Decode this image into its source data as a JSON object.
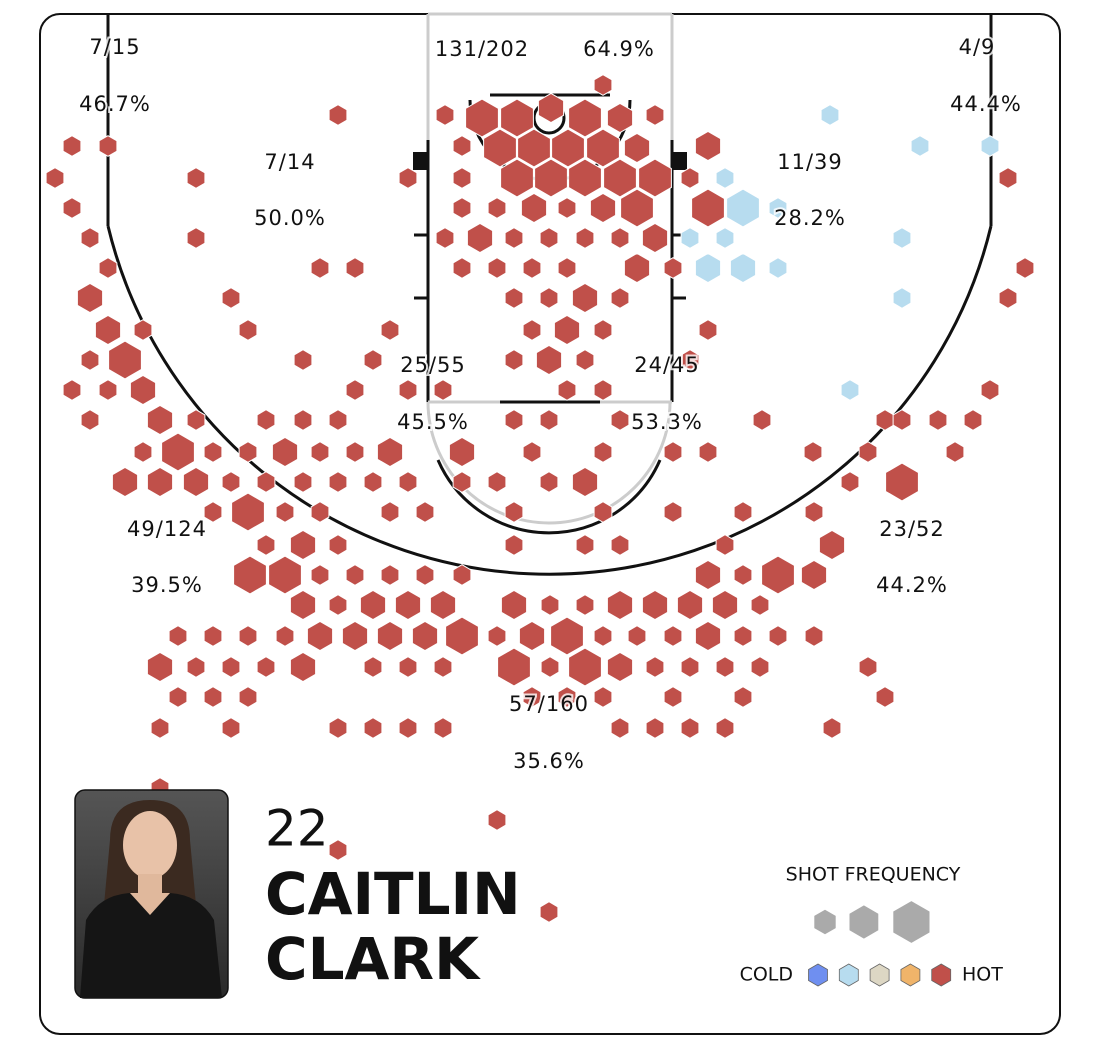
{
  "chart_data": {
    "type": "hexbin",
    "zones": [
      {
        "made": "7/15",
        "pct": "46.7%"
      },
      {
        "made": "7/14",
        "pct": "50.0%"
      },
      {
        "made": "131/202",
        "pct": "64.9%"
      },
      {
        "made": "4/9",
        "pct": "44.4%"
      },
      {
        "made": "11/39",
        "pct": "28.2%"
      },
      {
        "made": "25/55",
        "pct": "45.5%"
      },
      {
        "made": "24/45",
        "pct": "53.3%"
      },
      {
        "made": "49/124",
        "pct": "39.5%"
      },
      {
        "made": "23/52",
        "pct": "44.2%"
      },
      {
        "made": "57/160",
        "pct": "35.6%"
      }
    ],
    "player": {
      "number": "22",
      "name_lines": [
        "CAITLIN",
        "CLARK"
      ]
    },
    "legend": {
      "title": "SHOT FREQUENCY",
      "cold_label": "COLD",
      "hot_label": "HOT",
      "frequency_levels": [
        1,
        2,
        3
      ],
      "heat_levels": [
        1,
        2,
        3,
        4,
        5
      ],
      "heat_colors": [
        "#6f8ff0",
        "#b7dcef",
        "#ddd7c4",
        "#f0b46a",
        "#c0504a"
      ]
    },
    "hexes": [
      [
        -3.35,
        5.2,
        3,
        5
      ],
      [
        -1.6,
        5.2,
        3,
        5
      ],
      [
        1.8,
        5.2,
        3,
        5
      ],
      [
        3.55,
        5.2,
        2,
        5
      ],
      [
        -2.45,
        6.7,
        3,
        5
      ],
      [
        -0.75,
        6.7,
        3,
        5
      ],
      [
        0.95,
        6.7,
        3,
        5
      ],
      [
        2.7,
        6.7,
        3,
        5
      ],
      [
        4.4,
        6.7,
        2,
        5
      ],
      [
        -1.6,
        8.2,
        3,
        5
      ],
      [
        0.1,
        8.2,
        3,
        5
      ],
      [
        1.8,
        8.2,
        3,
        5
      ],
      [
        3.55,
        8.2,
        3,
        5
      ],
      [
        5.3,
        8.2,
        3,
        5
      ],
      [
        -0.75,
        9.7,
        2,
        5
      ],
      [
        2.7,
        9.7,
        2,
        5
      ],
      [
        4.4,
        9.7,
        3,
        5
      ],
      [
        7.95,
        9.7,
        3,
        5
      ],
      [
        7.95,
        6.6,
        2,
        5
      ],
      [
        2.7,
        3.55,
        1,
        5
      ],
      [
        0.1,
        4.7,
        2,
        5
      ],
      [
        9.7,
        9.7,
        3,
        2
      ],
      [
        7.95,
        12.7,
        2,
        2
      ],
      [
        9.7,
        12.7,
        2,
        2
      ],
      [
        11.45,
        12.7,
        1,
        2
      ],
      [
        8.8,
        11.2,
        1,
        2
      ],
      [
        7.05,
        11.2,
        1,
        2
      ],
      [
        17.65,
        11.2,
        1,
        2
      ],
      [
        17.65,
        14.2,
        1,
        2
      ],
      [
        18.55,
        6.6,
        1,
        2
      ],
      [
        15.05,
        18.8,
        1,
        2
      ],
      [
        8.8,
        8.2,
        1,
        2
      ],
      [
        14.05,
        5.05,
        1,
        2
      ],
      [
        11.45,
        9.7,
        1,
        2
      ],
      [
        22.05,
        6.6,
        1,
        2
      ],
      [
        -5.2,
        5.05,
        1,
        5
      ],
      [
        5.3,
        5.05,
        1,
        5
      ],
      [
        -10.55,
        5.05,
        1,
        5
      ],
      [
        -22.05,
        6.6,
        1,
        5
      ],
      [
        -23.85,
        6.6,
        1,
        5
      ],
      [
        -17.65,
        8.2,
        1,
        5
      ],
      [
        -7.05,
        8.2,
        1,
        5
      ],
      [
        -4.35,
        6.6,
        1,
        5
      ],
      [
        -24.7,
        8.2,
        1,
        5
      ],
      [
        -23.85,
        9.7,
        1,
        5
      ],
      [
        -22.95,
        11.2,
        1,
        5
      ],
      [
        -17.65,
        11.2,
        1,
        5
      ],
      [
        -22.05,
        12.7,
        1,
        5
      ],
      [
        -11.45,
        12.7,
        1,
        5
      ],
      [
        -9.7,
        12.7,
        1,
        5
      ],
      [
        -22.95,
        14.2,
        2,
        5
      ],
      [
        -15.9,
        14.2,
        1,
        5
      ],
      [
        -22.05,
        15.8,
        2,
        5
      ],
      [
        -20.3,
        15.8,
        1,
        5
      ],
      [
        -15.05,
        15.8,
        1,
        5
      ],
      [
        -7.95,
        15.8,
        1,
        5
      ],
      [
        -21.2,
        17.3,
        3,
        5
      ],
      [
        -22.95,
        17.3,
        1,
        5
      ],
      [
        -12.3,
        17.3,
        1,
        5
      ],
      [
        -23.85,
        18.8,
        1,
        5
      ],
      [
        -20.3,
        18.8,
        2,
        5
      ],
      [
        -9.7,
        18.8,
        1,
        5
      ],
      [
        -22.05,
        18.8,
        1,
        5
      ],
      [
        -19.45,
        20.3,
        2,
        5
      ],
      [
        -22.95,
        20.3,
        1,
        5
      ],
      [
        -17.65,
        20.3,
        1,
        5
      ],
      [
        -14.15,
        20.3,
        1,
        5
      ],
      [
        -12.3,
        20.3,
        1,
        5
      ],
      [
        -10.55,
        20.3,
        1,
        5
      ],
      [
        -18.55,
        21.9,
        3,
        5
      ],
      [
        -20.3,
        21.9,
        1,
        5
      ],
      [
        -16.8,
        21.9,
        1,
        5
      ],
      [
        -15.05,
        21.9,
        1,
        5
      ],
      [
        -13.2,
        21.9,
        2,
        5
      ],
      [
        -11.45,
        21.9,
        1,
        5
      ],
      [
        -9.7,
        21.9,
        1,
        5
      ],
      [
        -7.95,
        21.9,
        2,
        5
      ],
      [
        -21.2,
        23.4,
        2,
        5
      ],
      [
        -19.45,
        23.4,
        2,
        5
      ],
      [
        -17.65,
        23.4,
        2,
        5
      ],
      [
        -15.9,
        23.4,
        1,
        5
      ],
      [
        -14.15,
        23.4,
        1,
        5
      ],
      [
        -12.3,
        23.4,
        1,
        5
      ],
      [
        -10.55,
        23.4,
        1,
        5
      ],
      [
        -8.8,
        23.4,
        1,
        5
      ],
      [
        -7.05,
        23.4,
        1,
        5
      ],
      [
        -15.05,
        24.9,
        3,
        5
      ],
      [
        -16.8,
        24.9,
        1,
        5
      ],
      [
        -13.2,
        24.9,
        1,
        5
      ],
      [
        -11.45,
        24.9,
        1,
        5
      ],
      [
        -7.95,
        24.9,
        1,
        5
      ],
      [
        -6.2,
        24.9,
        1,
        5
      ],
      [
        -14.15,
        26.55,
        1,
        5
      ],
      [
        -12.3,
        26.55,
        2,
        5
      ],
      [
        -10.55,
        26.55,
        1,
        5
      ],
      [
        -14.95,
        28.05,
        3,
        5
      ],
      [
        -13.2,
        28.05,
        3,
        5
      ],
      [
        -11.45,
        28.05,
        1,
        5
      ],
      [
        -9.7,
        28.05,
        1,
        5
      ],
      [
        -7.95,
        28.05,
        1,
        5
      ],
      [
        -6.2,
        28.05,
        1,
        5
      ],
      [
        -4.35,
        28.05,
        1,
        5
      ],
      [
        -12.3,
        29.55,
        2,
        5
      ],
      [
        -10.55,
        29.55,
        1,
        5
      ],
      [
        -8.8,
        29.55,
        2,
        5
      ],
      [
        -7.05,
        29.55,
        2,
        5
      ],
      [
        -5.3,
        29.55,
        2,
        5
      ],
      [
        -1.75,
        29.55,
        2,
        5
      ],
      [
        0.05,
        29.55,
        1,
        5
      ],
      [
        1.8,
        29.55,
        1,
        5
      ],
      [
        3.55,
        29.55,
        2,
        5
      ],
      [
        5.3,
        29.55,
        2,
        5
      ],
      [
        7.05,
        29.55,
        2,
        5
      ],
      [
        8.8,
        29.55,
        2,
        5
      ],
      [
        10.55,
        29.55,
        1,
        5
      ],
      [
        -18.55,
        31.1,
        1,
        5
      ],
      [
        -16.8,
        31.1,
        1,
        5
      ],
      [
        -15.05,
        31.1,
        1,
        5
      ],
      [
        -13.2,
        31.1,
        1,
        5
      ],
      [
        -11.45,
        31.1,
        2,
        5
      ],
      [
        -9.7,
        31.1,
        2,
        5
      ],
      [
        -7.95,
        31.1,
        2,
        5
      ],
      [
        -6.2,
        31.1,
        2,
        5
      ],
      [
        -4.35,
        31.1,
        3,
        5
      ],
      [
        -2.6,
        31.1,
        1,
        5
      ],
      [
        -0.85,
        31.1,
        2,
        5
      ],
      [
        0.9,
        31.1,
        3,
        5
      ],
      [
        2.7,
        31.1,
        1,
        5
      ],
      [
        4.4,
        31.1,
        1,
        5
      ],
      [
        6.2,
        31.1,
        1,
        5
      ],
      [
        7.95,
        31.1,
        2,
        5
      ],
      [
        9.7,
        31.1,
        1,
        5
      ],
      [
        11.45,
        31.1,
        1,
        5
      ],
      [
        13.25,
        31.1,
        1,
        5
      ],
      [
        -19.45,
        32.65,
        2,
        5
      ],
      [
        -17.65,
        32.65,
        1,
        5
      ],
      [
        -15.9,
        32.65,
        1,
        5
      ],
      [
        -14.15,
        32.65,
        1,
        5
      ],
      [
        -12.3,
        32.65,
        2,
        5
      ],
      [
        -8.8,
        32.65,
        1,
        5
      ],
      [
        -7.05,
        32.65,
        1,
        5
      ],
      [
        -5.3,
        32.65,
        1,
        5
      ],
      [
        -1.75,
        32.65,
        3,
        5
      ],
      [
        0.05,
        32.65,
        1,
        5
      ],
      [
        1.8,
        32.65,
        3,
        5
      ],
      [
        3.55,
        32.65,
        2,
        5
      ],
      [
        5.3,
        32.65,
        1,
        5
      ],
      [
        7.05,
        32.65,
        1,
        5
      ],
      [
        8.8,
        32.65,
        1,
        5
      ],
      [
        10.55,
        32.65,
        1,
        5
      ],
      [
        15.95,
        32.65,
        1,
        5
      ],
      [
        -18.55,
        34.15,
        1,
        5
      ],
      [
        -16.8,
        34.15,
        1,
        5
      ],
      [
        -15.05,
        34.15,
        1,
        5
      ],
      [
        -0.85,
        34.15,
        1,
        5
      ],
      [
        0.9,
        34.15,
        1,
        5
      ],
      [
        2.7,
        34.15,
        1,
        5
      ],
      [
        6.2,
        34.15,
        1,
        5
      ],
      [
        9.7,
        34.15,
        1,
        5
      ],
      [
        16.8,
        34.15,
        1,
        5
      ],
      [
        -19.45,
        35.7,
        1,
        5
      ],
      [
        -15.9,
        35.7,
        1,
        5
      ],
      [
        -10.55,
        35.7,
        1,
        5
      ],
      [
        -8.8,
        35.7,
        1,
        5
      ],
      [
        -7.05,
        35.7,
        1,
        5
      ],
      [
        -5.3,
        35.7,
        1,
        5
      ],
      [
        3.55,
        35.7,
        1,
        5
      ],
      [
        5.3,
        35.7,
        1,
        5
      ],
      [
        7.05,
        35.7,
        1,
        5
      ],
      [
        8.8,
        35.7,
        1,
        5
      ],
      [
        14.15,
        35.7,
        1,
        5
      ],
      [
        -19.45,
        38.7,
        1,
        5
      ],
      [
        -2.6,
        40.3,
        1,
        5
      ],
      [
        -10.55,
        41.8,
        1,
        5
      ],
      [
        0,
        44.9,
        1,
        5
      ],
      [
        7.95,
        28.05,
        2,
        5
      ],
      [
        9.7,
        28.05,
        1,
        5
      ],
      [
        11.45,
        28.05,
        3,
        5
      ],
      [
        13.25,
        28.05,
        2,
        5
      ],
      [
        8.8,
        26.55,
        1,
        5
      ],
      [
        14.15,
        26.55,
        2,
        5
      ],
      [
        6.2,
        24.9,
        1,
        5
      ],
      [
        9.7,
        24.9,
        1,
        5
      ],
      [
        13.25,
        24.9,
        1,
        5
      ],
      [
        15.05,
        23.4,
        1,
        5
      ],
      [
        17.65,
        23.4,
        3,
        5
      ],
      [
        15.95,
        21.9,
        1,
        5
      ],
      [
        20.3,
        21.9,
        1,
        5
      ],
      [
        16.8,
        20.3,
        1,
        5
      ],
      [
        17.65,
        20.3,
        1,
        5
      ],
      [
        19.45,
        20.3,
        1,
        5
      ],
      [
        21.2,
        20.3,
        1,
        5
      ],
      [
        10.65,
        20.3,
        1,
        5
      ],
      [
        6.2,
        21.9,
        1,
        5
      ],
      [
        7.95,
        21.9,
        1,
        5
      ],
      [
        13.2,
        21.9,
        1,
        5
      ],
      [
        22.05,
        18.8,
        1,
        5
      ],
      [
        22.95,
        14.2,
        1,
        5
      ],
      [
        23.8,
        12.7,
        1,
        5
      ],
      [
        22.95,
        8.2,
        1,
        5
      ],
      [
        -4.35,
        9.7,
        1,
        5
      ],
      [
        -2.6,
        9.7,
        1,
        5
      ],
      [
        0.9,
        9.7,
        1,
        5
      ],
      [
        -5.2,
        11.2,
        1,
        5
      ],
      [
        -3.45,
        11.2,
        2,
        5
      ],
      [
        -1.75,
        11.2,
        1,
        5
      ],
      [
        0,
        11.2,
        1,
        5
      ],
      [
        1.8,
        11.2,
        1,
        5
      ],
      [
        3.55,
        11.2,
        1,
        5
      ],
      [
        5.3,
        11.2,
        2,
        5
      ],
      [
        -4.35,
        12.7,
        1,
        5
      ],
      [
        -2.6,
        12.7,
        1,
        5
      ],
      [
        -0.85,
        12.7,
        1,
        5
      ],
      [
        0.9,
        12.7,
        1,
        5
      ],
      [
        4.4,
        12.7,
        2,
        5
      ],
      [
        6.2,
        12.7,
        1,
        5
      ],
      [
        -1.75,
        14.2,
        1,
        5
      ],
      [
        0,
        14.2,
        1,
        5
      ],
      [
        1.8,
        14.2,
        2,
        5
      ],
      [
        3.55,
        14.2,
        1,
        5
      ],
      [
        -0.85,
        15.8,
        1,
        5
      ],
      [
        0.9,
        15.8,
        2,
        5
      ],
      [
        2.7,
        15.8,
        1,
        5
      ],
      [
        7.95,
        15.8,
        1,
        5
      ],
      [
        -1.75,
        17.3,
        1,
        5
      ],
      [
        0,
        17.3,
        2,
        5
      ],
      [
        1.8,
        17.3,
        1,
        5
      ],
      [
        7.05,
        17.3,
        1,
        5
      ],
      [
        0.9,
        18.8,
        1,
        5
      ],
      [
        2.7,
        18.8,
        1,
        5
      ],
      [
        -1.75,
        20.3,
        1,
        5
      ],
      [
        0,
        20.3,
        1,
        5
      ],
      [
        3.55,
        20.3,
        1,
        5
      ],
      [
        -4.35,
        21.9,
        2,
        5
      ],
      [
        -0.85,
        21.9,
        1,
        5
      ],
      [
        2.7,
        21.9,
        1,
        5
      ],
      [
        0,
        23.4,
        1,
        5
      ],
      [
        1.8,
        23.4,
        2,
        5
      ],
      [
        -2.6,
        23.4,
        1,
        5
      ],
      [
        -4.35,
        23.4,
        1,
        5
      ],
      [
        -1.75,
        24.9,
        1,
        5
      ],
      [
        2.7,
        24.9,
        1,
        5
      ],
      [
        -1.75,
        26.55,
        1,
        5
      ],
      [
        1.8,
        26.55,
        1,
        5
      ],
      [
        3.55,
        26.55,
        1,
        5
      ],
      [
        -5.3,
        18.8,
        1,
        5
      ],
      [
        -7.05,
        18.8,
        1,
        5
      ],
      [
        -8.8,
        17.3,
        1,
        5
      ],
      [
        7.05,
        8.2,
        1,
        5
      ],
      [
        -4.35,
        8.2,
        1,
        5
      ]
    ]
  }
}
